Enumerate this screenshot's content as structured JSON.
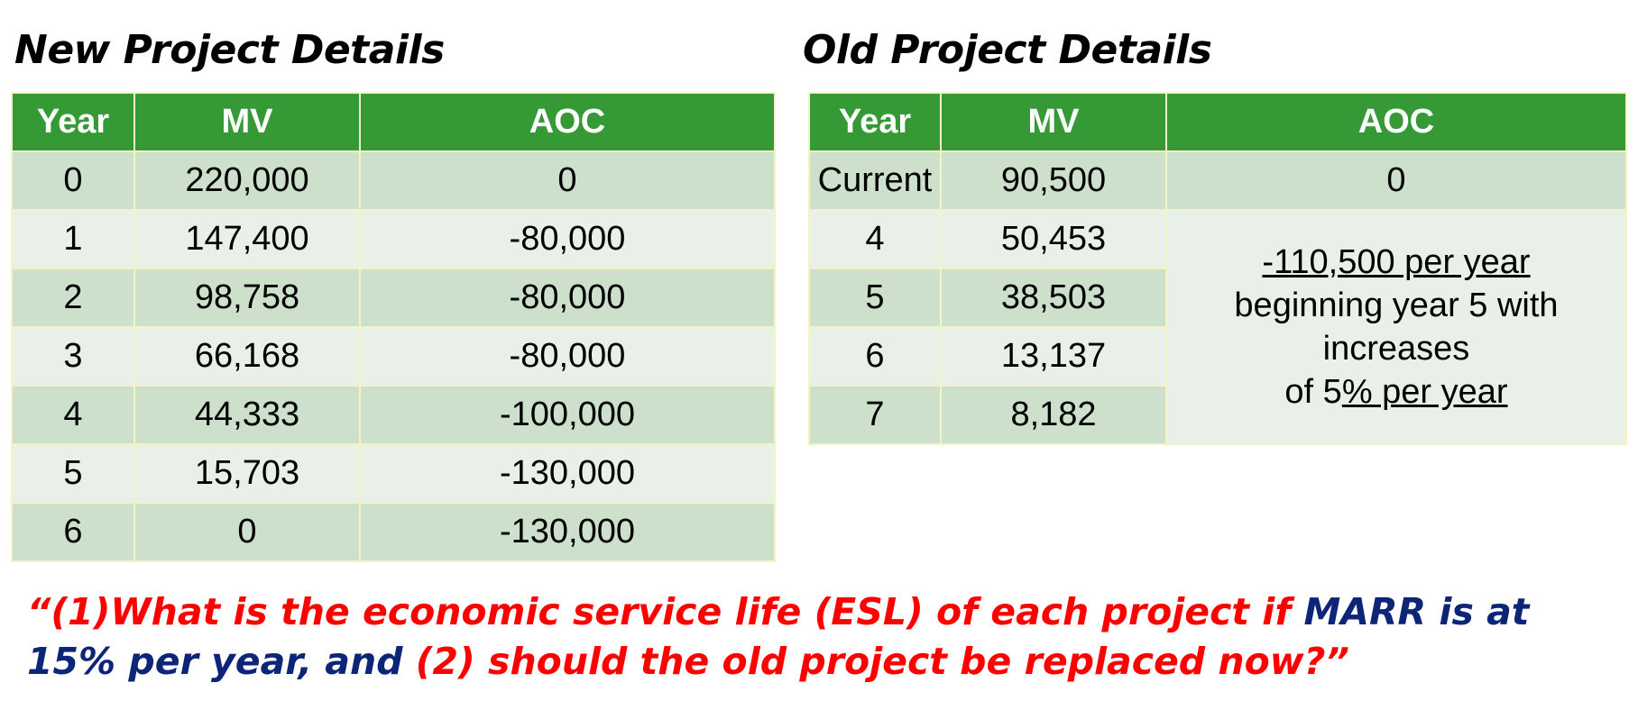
{
  "new_project": {
    "title": "New Project Details",
    "headers": [
      "Year",
      "MV",
      "AOC"
    ],
    "rows": [
      [
        "0",
        "220,000",
        "0"
      ],
      [
        "1",
        "147,400",
        "-80,000"
      ],
      [
        "2",
        "98,758",
        "-80,000"
      ],
      [
        "3",
        "66,168",
        "-80,000"
      ],
      [
        "4",
        "44,333",
        "-100,000"
      ],
      [
        "5",
        "15,703",
        "-130,000"
      ],
      [
        "6",
        "0",
        "-130,000"
      ]
    ]
  },
  "old_project": {
    "title": "Old Project Details",
    "headers": [
      "Year",
      "MV",
      "AOC"
    ],
    "rows": [
      [
        "Current",
        "90,500",
        "0"
      ],
      [
        "4",
        "50,453"
      ],
      [
        "5",
        "38,503"
      ],
      [
        "6",
        "13,137"
      ],
      [
        "7",
        "8,182"
      ]
    ],
    "aoc_note": {
      "line1": "-110,500 per year",
      "line2": "beginning year 5 with increases",
      "line3_prefix": "of 5",
      "line3_underlined": "% per year"
    }
  },
  "question": {
    "part1": "“(1)What is the economic service life (ESL) of each project if ",
    "part2": "MARR is at 15% per year, and ",
    "part3": "(2) should the old project be replaced now?”"
  },
  "colors": {
    "header_green": "#359a36",
    "row_dark": "#cce0cc",
    "row_light": "#e8f0e8",
    "question_red": "#ff0000",
    "question_navy": "#0d2577"
  }
}
